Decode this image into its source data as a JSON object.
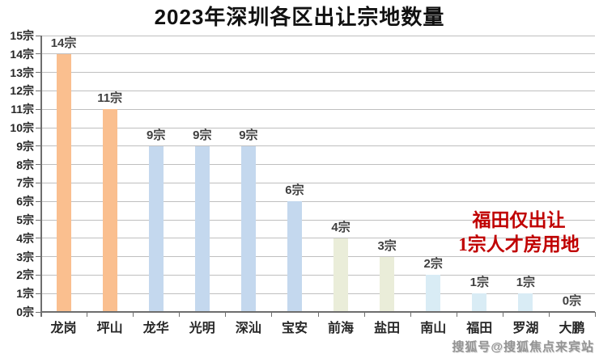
{
  "chart_data": {
    "type": "bar",
    "title": "2023年深圳各区出让宗地数量",
    "categories": [
      "龙岗",
      "坪山",
      "龙华",
      "光明",
      "深汕",
      "宝安",
      "前海",
      "盐田",
      "南山",
      "福田",
      "罗湖",
      "大鹏"
    ],
    "values": [
      14,
      11,
      9,
      9,
      9,
      6,
      4,
      3,
      2,
      1,
      1,
      0
    ],
    "data_labels": [
      "14宗",
      "11宗",
      "9宗",
      "9宗",
      "9宗",
      "6宗",
      "4宗",
      "3宗",
      "2宗",
      "1宗",
      "1宗",
      "0宗"
    ],
    "bar_colors": [
      "#FABF8F",
      "#FABF8F",
      "#C4D8EE",
      "#C4D8EE",
      "#C4D8EE",
      "#C4D8EE",
      "#EAEDD9",
      "#EAEDD9",
      "#D9ECF5",
      "#D9ECF5",
      "#D9ECF5",
      "#D9ECF5"
    ],
    "y_tick_labels": [
      "0宗",
      "1宗",
      "2宗",
      "3宗",
      "4宗",
      "5宗",
      "6宗",
      "7宗",
      "8宗",
      "9宗",
      "10宗",
      "11宗",
      "12宗",
      "13宗",
      "14宗",
      "15宗"
    ],
    "ylim": [
      0,
      15
    ],
    "grid": true,
    "legend": "none",
    "annotation": {
      "line1": "福田仅出让",
      "line2": "1宗人才房用地",
      "color": "#C00000"
    },
    "watermark": "搜狐号@搜狐焦点来宾站",
    "colors": {
      "gridline": "#BFBFBF",
      "axis": "#6E6E6E",
      "title_text": "#111111",
      "label_text": "#3F3F3F"
    }
  }
}
